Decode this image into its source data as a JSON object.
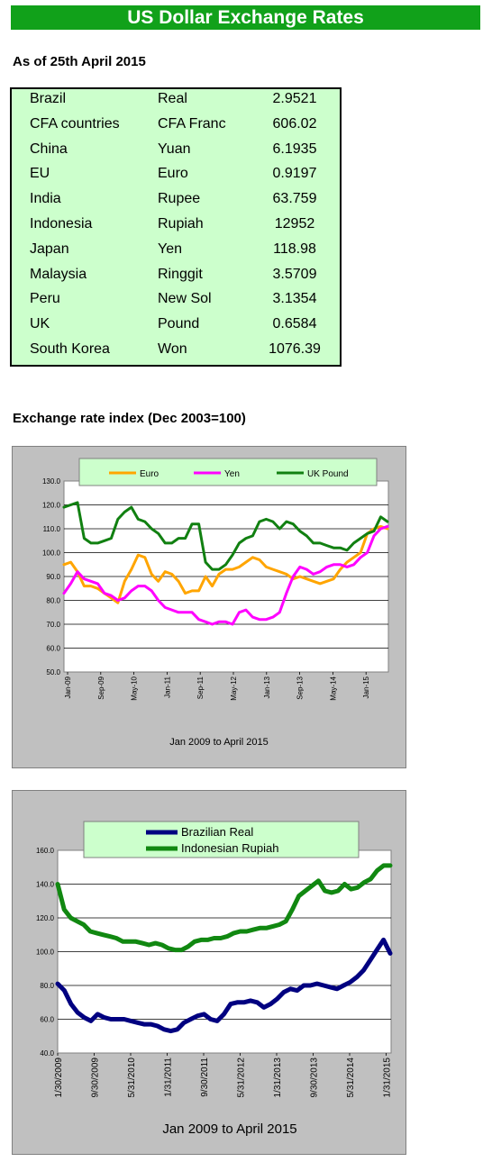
{
  "header": {
    "title": "US Dollar Exchange Rates"
  },
  "rates_section": {
    "heading": "As of 25th April 2015",
    "rows": [
      {
        "country": "Brazil",
        "currency": "Real",
        "rate": "2.9521"
      },
      {
        "country": "CFA countries",
        "currency": "CFA Franc",
        "rate": "606.02"
      },
      {
        "country": "China",
        "currency": "Yuan",
        "rate": "6.1935"
      },
      {
        "country": "EU",
        "currency": "Euro",
        "rate": "0.9197"
      },
      {
        "country": "India",
        "currency": "Rupee",
        "rate": "63.759"
      },
      {
        "country": "Indonesia",
        "currency": "Rupiah",
        "rate": "12952"
      },
      {
        "country": "Japan",
        "currency": "Yen",
        "rate": "118.98"
      },
      {
        "country": "Malaysia",
        "currency": "Ringgit",
        "rate": "3.5709"
      },
      {
        "country": "Peru",
        "currency": "New Sol",
        "rate": "3.1354"
      },
      {
        "country": "UK",
        "currency": "Pound",
        "rate": "0.6584"
      },
      {
        "country": "South Korea",
        "currency": "Won",
        "rate": "1076.39"
      }
    ]
  },
  "index_section": {
    "heading": "Exchange rate index (Dec 2003=100)"
  },
  "colors": {
    "banner": "#11a11a",
    "table_bg": "#ccffcc",
    "legend_bg": "#ccffcc",
    "panel_bg": "#c0c0c0",
    "euro": "#ffa500",
    "yen": "#ff00ff",
    "uk_pound": "#118011",
    "real": "#000080",
    "rupiah": "#118811"
  },
  "chart_data": [
    {
      "type": "line",
      "xlabel": "Jan 2009 to April 2015",
      "ylabel": "",
      "ylim": [
        50,
        130
      ],
      "yticks": [
        "50.0",
        "60.0",
        "70.0",
        "80.0",
        "90.0",
        "100.0",
        "110.0",
        "120.0",
        "130.0"
      ],
      "xticks": [
        "Jan-09",
        "Sep-09",
        "May-10",
        "Jan-11",
        "Sep-11",
        "May-12",
        "Jan-13",
        "Sep-13",
        "May-14",
        "Jan-15"
      ],
      "legend_position": "top",
      "grid": true,
      "series": [
        {
          "name": "Euro",
          "values": [
            95,
            96,
            92,
            86,
            86,
            85,
            83,
            81,
            79,
            88,
            93,
            99,
            98,
            91,
            88,
            92,
            91,
            88,
            83,
            84,
            84,
            90,
            86,
            91,
            93,
            93,
            94,
            96,
            98,
            97,
            94,
            93,
            92,
            91,
            89,
            90,
            89,
            88,
            87,
            88,
            89,
            93,
            96,
            98,
            100,
            108,
            110,
            111,
            110
          ]
        },
        {
          "name": "Yen",
          "values": [
            83,
            87,
            92,
            89,
            88,
            87,
            83,
            82,
            80,
            81,
            84,
            86,
            86,
            84,
            80,
            77,
            76,
            75,
            75,
            75,
            72,
            71,
            70,
            71,
            71,
            70,
            75,
            76,
            73,
            72,
            72,
            73,
            75,
            83,
            90,
            94,
            93,
            91,
            92,
            94,
            95,
            95,
            94,
            95,
            98,
            100,
            107,
            110,
            111
          ]
        },
        {
          "name": "UK Pound",
          "values": [
            119,
            120,
            121,
            106,
            104,
            104,
            105,
            106,
            114,
            117,
            119,
            114,
            113,
            110,
            108,
            104,
            104,
            106,
            106,
            112,
            112,
            96,
            93,
            93,
            95,
            99,
            104,
            106,
            107,
            113,
            114,
            113,
            110,
            113,
            112,
            109,
            107,
            104,
            104,
            103,
            102,
            102,
            101,
            104,
            106,
            108,
            109,
            115,
            113
          ]
        }
      ]
    },
    {
      "type": "line",
      "xlabel": "Jan 2009 to  April  2015",
      "ylabel": "",
      "ylim": [
        40,
        160
      ],
      "yticks": [
        "40.0",
        "60.0",
        "80.0",
        "100.0",
        "120.0",
        "140.0",
        "160.0"
      ],
      "xticks": [
        "1/30/2009",
        "9/30/2009",
        "5/31/2010",
        "1/31/2011",
        "9/30/2011",
        "5/31/2012",
        "1/31/2013",
        "9/30/2013",
        "5/31/2014",
        "1/31/2015"
      ],
      "legend_position": "top",
      "grid": true,
      "series": [
        {
          "name": "Brazilian Real",
          "values": [
            81,
            77,
            69,
            64,
            61,
            59,
            63,
            61,
            60,
            60,
            60,
            59,
            58,
            57,
            57,
            56,
            54,
            53,
            54,
            58,
            60,
            62,
            63,
            60,
            59,
            63,
            69,
            70,
            70,
            71,
            70,
            67,
            69,
            72,
            76,
            78,
            77,
            80,
            80,
            81,
            80,
            79,
            78,
            80,
            82,
            85,
            89,
            95,
            101,
            107,
            99
          ]
        },
        {
          "name": "Indonesian Rupiah",
          "values": [
            140,
            125,
            120,
            118,
            116,
            112,
            111,
            110,
            109,
            108,
            106,
            106,
            106,
            105,
            104,
            105,
            104,
            102,
            101,
            101,
            103,
            106,
            107,
            107,
            108,
            108,
            109,
            111,
            112,
            112,
            113,
            114,
            114,
            115,
            116,
            118,
            125,
            133,
            136,
            139,
            142,
            136,
            135,
            136,
            140,
            137,
            138,
            141,
            143,
            148,
            151,
            151
          ]
        }
      ]
    }
  ]
}
